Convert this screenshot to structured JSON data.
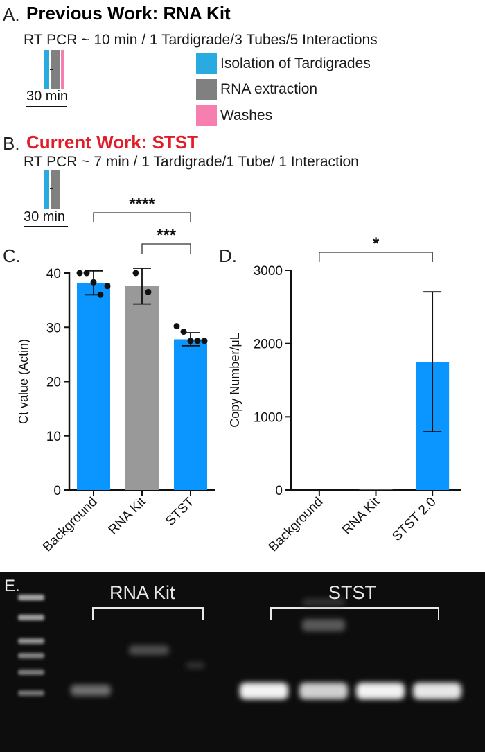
{
  "panel_a": {
    "letter": "A.",
    "heading": "Previous Work: RNA Kit",
    "rt_line": "RT PCR ~  10 min / 1 Tardigrade/3 Tubes/5 Interactions",
    "scale_label": "30 min",
    "legend": [
      {
        "label": "Isolation of Tardigrades",
        "color": "#29abe2"
      },
      {
        "label": "RNA extraction",
        "color": "#808080"
      },
      {
        "label": "Washes",
        "color": "#f77fb0"
      }
    ]
  },
  "panel_b": {
    "letter": "B.",
    "heading": "Current Work: STST",
    "heading_color": "#e11d2a",
    "rt_line": "RT PCR ~ 7 min / 1 Tardigrade/1 Tube/ 1 Interaction",
    "scale_label": "30 min"
  },
  "panel_c": {
    "letter": "C."
  },
  "panel_d": {
    "letter": "D."
  },
  "panel_e": {
    "letter": "E.",
    "group_labels": [
      "RNA Kit",
      "STST"
    ]
  },
  "chart_data": [
    {
      "type": "bar",
      "panel": "C",
      "categories": [
        "Background",
        "RNA Kit",
        "STST"
      ],
      "values": [
        38.2,
        37.6,
        27.8
      ],
      "error": [
        2.2,
        3.3,
        1.2
      ],
      "colors": [
        "#0b96ff",
        "#999999",
        "#0b96ff"
      ],
      "points": [
        [
          40,
          40,
          38.3,
          36,
          37.6
        ],
        [
          40,
          36.5
        ],
        [
          30.2,
          29.2,
          27.5,
          27.5,
          27.5
        ]
      ],
      "ylabel": "Ct value (Actin)",
      "ylim": [
        0,
        40
      ],
      "yticks": [
        0,
        10,
        20,
        30,
        40
      ],
      "significance": [
        {
          "from": 0,
          "to": 2,
          "label": "****"
        },
        {
          "from": 1,
          "to": 2,
          "label": "***"
        }
      ]
    },
    {
      "type": "bar",
      "panel": "D",
      "categories": [
        "Background",
        "RNA Kit",
        "STST 2.0"
      ],
      "values": [
        0,
        5,
        1750
      ],
      "error": [
        0,
        0,
        955
      ],
      "colors": [
        "#0b96ff",
        "#999999",
        "#0b96ff"
      ],
      "ylabel": "Copy Number/μL",
      "ylim": [
        0,
        3000
      ],
      "yticks": [
        0,
        1000,
        2000,
        3000
      ],
      "significance": [
        {
          "from": 0,
          "to": 2,
          "label": "*"
        }
      ]
    }
  ]
}
